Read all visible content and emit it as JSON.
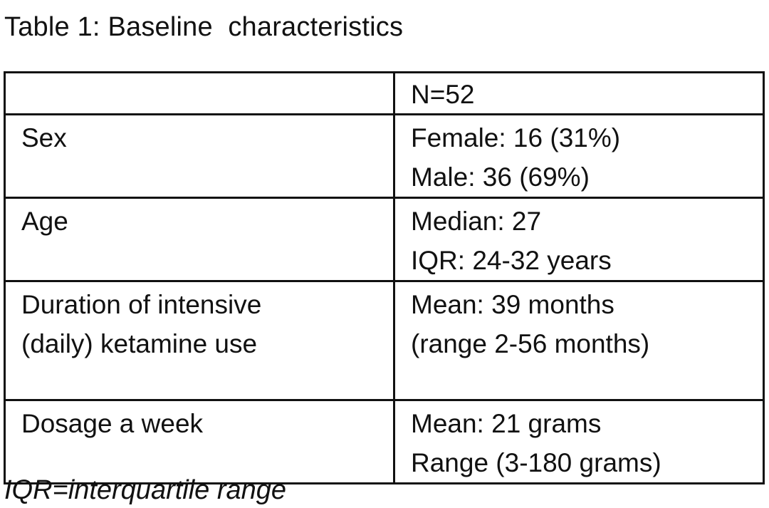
{
  "caption": "Table 1: Baseline  characteristics",
  "table": {
    "header": [
      "",
      "N=52"
    ],
    "rows": [
      {
        "label_lines": [
          "Sex"
        ],
        "value_lines": [
          "Female: 16 (31%)",
          "Male: 36 (69%)"
        ]
      },
      {
        "label_lines": [
          "Age"
        ],
        "value_lines": [
          "Median: 27",
          "IQR: 24-32 years"
        ]
      },
      {
        "label_lines": [
          "Duration of intensive",
          "(daily) ketamine use"
        ],
        "value_lines": [
          "Mean: 39 months",
          "(range 2-56 months)"
        ]
      },
      {
        "label_lines": [
          "Dosage a week"
        ],
        "value_lines": [
          "Mean: 21 grams",
          "Range (3-180 grams)"
        ]
      }
    ]
  },
  "footnote": "IQR=interquartile range"
}
